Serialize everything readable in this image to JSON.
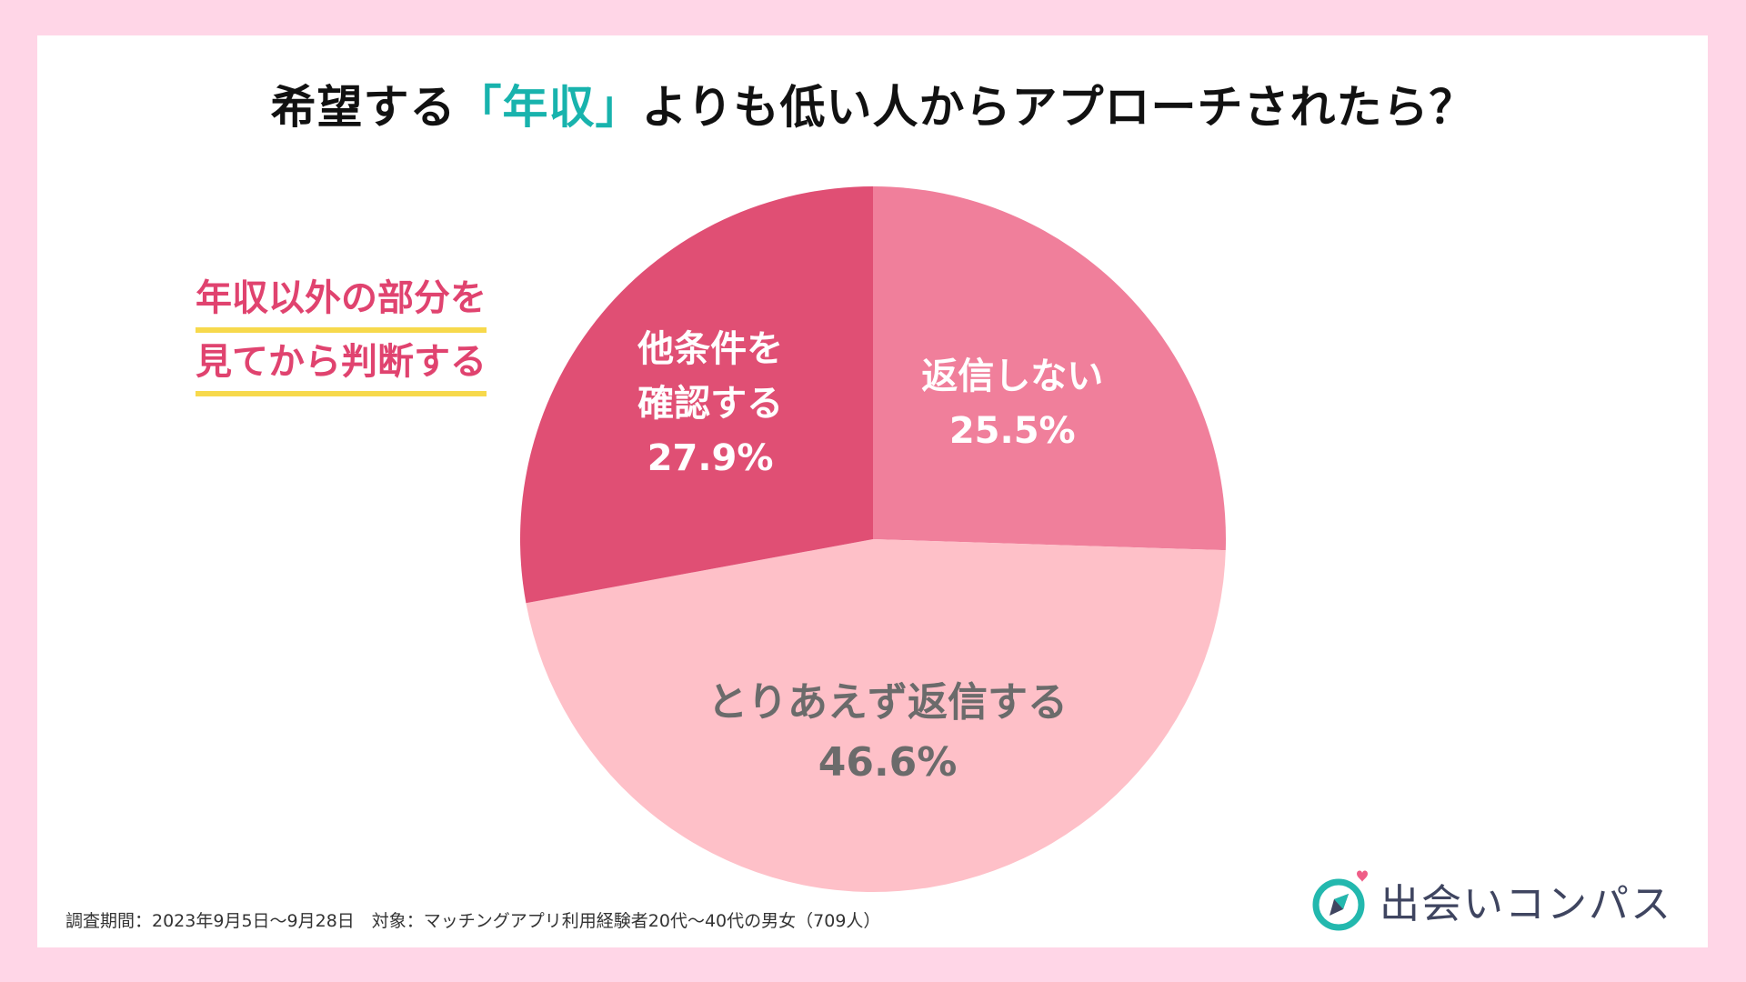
{
  "title": {
    "before": "希望する",
    "highlight": "「年収」",
    "after": "よりも低い人からアプローチされたら？"
  },
  "note": {
    "line1": "年収以外の部分を",
    "line2": "見てから判断する"
  },
  "colors": {
    "background": "#ffd6e7",
    "accent": "#18b3ad",
    "note_text": "#e0436f",
    "underline": "#f7d94c"
  },
  "chart_data": {
    "type": "pie",
    "title": "希望する「年収」よりも低い人からアプローチされたら？",
    "start_angle_deg": 0,
    "direction": "clockwise",
    "slices": [
      {
        "label": "返信しない",
        "value": 25.5,
        "value_label": "25.5%",
        "color": "#f07f9b",
        "text_color": "#ffffff"
      },
      {
        "label": "とりあえず返信する",
        "value": 46.6,
        "value_label": "46.6%",
        "color": "#fec0c8",
        "text_color": "#6b6b6b"
      },
      {
        "label": "他条件を確認する",
        "value": 27.9,
        "value_label": "27.9%",
        "color": "#e04f74",
        "text_color": "#ffffff"
      }
    ]
  },
  "footnote": "調査期間：2023年9月5日〜9月28日　対象：マッチングアプリ利用経験者20代〜40代の男女（709人）",
  "logo": {
    "text": "出会いコンパス",
    "icon": "compass-heart-icon"
  }
}
